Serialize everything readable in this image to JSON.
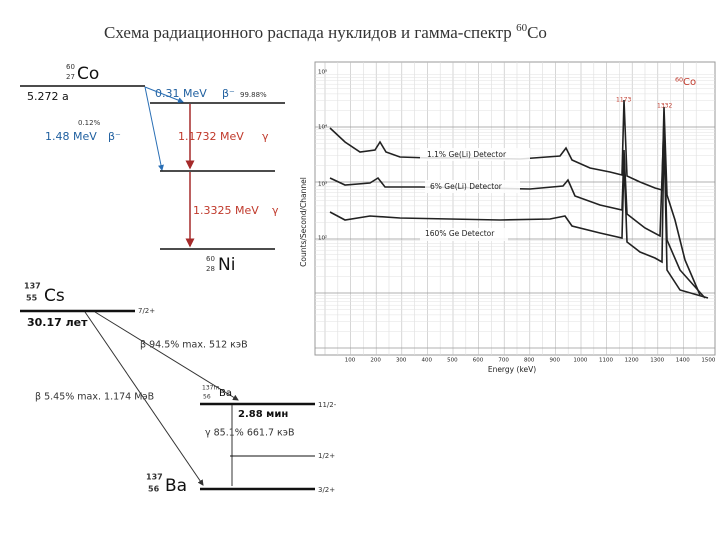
{
  "title": {
    "text": "Схема радиационного распада нуклидов и гамма-спектр ",
    "sup": "60",
    "element": "Co"
  },
  "co60_scheme": {
    "parent": {
      "mass": "60",
      "z": "27",
      "symbol": "Co",
      "half_life": "5.272 a"
    },
    "beta_main": {
      "energy": "0.31 MeV",
      "symbol": "β⁻",
      "percent": "99.88%"
    },
    "beta_minor": {
      "percent": "0.12%",
      "energy": "1.48 MeV",
      "symbol": "β⁻"
    },
    "gamma_1": {
      "energy": "1.1732 MeV",
      "symbol": "γ"
    },
    "gamma_2": {
      "energy": "1.3325 MeV",
      "symbol": "γ"
    },
    "daughter": {
      "mass": "60",
      "z": "28",
      "symbol": "Ni"
    }
  },
  "cs137_scheme": {
    "parent": {
      "mass": "137",
      "z": "55",
      "symbol": "Cs",
      "spin": "7/2+",
      "half_life": "30.17 лет"
    },
    "beta_main": "β 94.5% max. 512 кэВ",
    "beta_minor": "β 5.45% max. 1.174 МэВ",
    "isomer": {
      "mass": "137m",
      "z": "56",
      "symbol": "Ba",
      "spin": "11/2-",
      "half_life": "2.88 мин"
    },
    "gamma": "γ 85.1% 661.7 кэВ",
    "level_mid": {
      "spin": "1/2+"
    },
    "daughter": {
      "mass": "137",
      "z": "56",
      "symbol": "Ba",
      "spin": "3/2+"
    }
  },
  "spectrum": {
    "y_label": "Counts/Second/Channel",
    "x_label": "Energy (keV)",
    "y_ticks": [
      "10⁵",
      "10⁴",
      "10³",
      "10²"
    ],
    "x_ticks": [
      "100",
      "200",
      "300",
      "400",
      "500",
      "600",
      "700",
      "800",
      "900",
      "1000",
      "1100",
      "1200",
      "1300",
      "1400",
      "1500"
    ],
    "legend": [
      "1.1% Ge(Li) Detector",
      "6% Ge(Li) Detector",
      "160% Ge Detector"
    ],
    "source": "⁶⁰Co",
    "peaks": [
      "1173",
      "1332"
    ]
  }
}
